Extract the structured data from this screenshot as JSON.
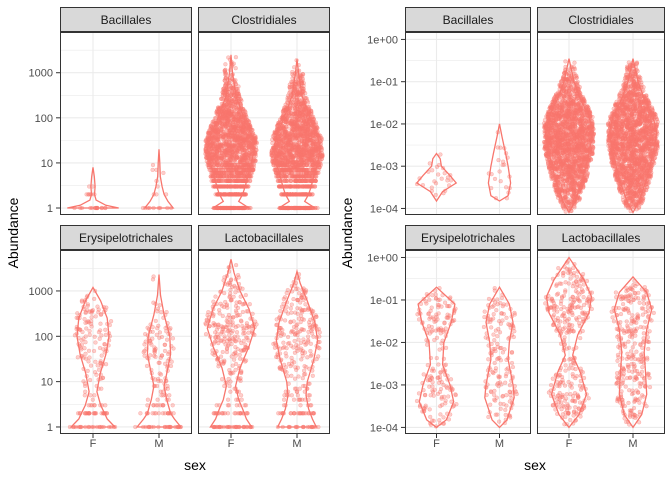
{
  "figure": {
    "colors": {
      "accent": "#f8766d",
      "strip_fill": "#d9d9d9",
      "strip_border": "#333333",
      "panel_border": "#333333",
      "grid": "#ebebeb",
      "text": "#4d4d4d"
    }
  },
  "chart_data": [
    {
      "type": "violin",
      "subtype": "violin with jittered points, faceted 2x2",
      "xlabel": "sex",
      "ylabel": "Abundance",
      "yscale": "log10",
      "ylim": [
        0.7,
        8000
      ],
      "ytick_values": [
        1,
        10,
        100,
        1000
      ],
      "ytick_labels": [
        "1",
        "10",
        "100",
        "1000"
      ],
      "categories": [
        "F",
        "M"
      ],
      "grid": true,
      "facets": [
        {
          "label": "Bacillales",
          "point_count": {
            "F": 24,
            "M": 18
          },
          "point_range": {
            "F": [
              1,
              8
            ],
            "M": [
              1,
              20
            ]
          },
          "violin": {
            "F": {
              "range": [
                1,
                8
              ],
              "profile": [
                [
                  1,
                  1.0
                ],
                [
                  1.15,
                  0.5
                ],
                [
                  1.5,
                  0.12
                ],
                [
                  2,
                  0.06
                ],
                [
                  3,
                  0.08
                ],
                [
                  5,
                  0.05
                ],
                [
                  8,
                  0.0
                ]
              ]
            },
            "M": {
              "range": [
                1,
                20
              ],
              "profile": [
                [
                  1,
                  0.55
                ],
                [
                  1.4,
                  0.35
                ],
                [
                  2,
                  0.2
                ],
                [
                  3,
                  0.12
                ],
                [
                  5,
                  0.05
                ],
                [
                  10,
                  0.03
                ],
                [
                  20,
                  0.0
                ]
              ]
            }
          }
        },
        {
          "label": "Clostridiales",
          "point_count": {
            "F": 2000,
            "M": 2000
          },
          "point_range": {
            "F": [
              1,
              2500
            ],
            "M": [
              1,
              2000
            ]
          },
          "violin": {
            "F": {
              "range": [
                1,
                2500
              ],
              "profile": [
                [
                  1,
                  0.7
                ],
                [
                  1.4,
                  0.3
                ],
                [
                  2,
                  0.45
                ],
                [
                  3,
                  0.55
                ],
                [
                  5,
                  0.65
                ],
                [
                  10,
                  0.8
                ],
                [
                  20,
                  0.9
                ],
                [
                  40,
                  0.8
                ],
                [
                  100,
                  0.5
                ],
                [
                  300,
                  0.2
                ],
                [
                  1000,
                  0.06
                ],
                [
                  2500,
                  0.0
                ]
              ]
            },
            "M": {
              "range": [
                1,
                2000
              ],
              "profile": [
                [
                  1,
                  0.7
                ],
                [
                  1.4,
                  0.3
                ],
                [
                  2,
                  0.45
                ],
                [
                  3,
                  0.55
                ],
                [
                  5,
                  0.65
                ],
                [
                  10,
                  0.8
                ],
                [
                  20,
                  0.9
                ],
                [
                  40,
                  0.8
                ],
                [
                  100,
                  0.5
                ],
                [
                  300,
                  0.2
                ],
                [
                  1000,
                  0.06
                ],
                [
                  2000,
                  0.0
                ]
              ]
            }
          }
        },
        {
          "label": "Erysipelotrichales",
          "point_count": {
            "F": 190,
            "M": 160
          },
          "point_range": {
            "F": [
              1,
              1200
            ],
            "M": [
              1,
              2300
            ]
          },
          "violin": {
            "F": {
              "range": [
                1,
                1200
              ],
              "profile": [
                [
                  1,
                  0.85
                ],
                [
                  1.5,
                  0.55
                ],
                [
                  2,
                  0.45
                ],
                [
                  3,
                  0.3
                ],
                [
                  6,
                  0.15
                ],
                [
                  15,
                  0.28
                ],
                [
                  40,
                  0.5
                ],
                [
                  100,
                  0.62
                ],
                [
                  250,
                  0.55
                ],
                [
                  600,
                  0.3
                ],
                [
                  1200,
                  0.0
                ]
              ]
            },
            "M": {
              "range": [
                1,
                2300
              ],
              "profile": [
                [
                  1,
                  0.85
                ],
                [
                  1.5,
                  0.6
                ],
                [
                  2,
                  0.45
                ],
                [
                  4,
                  0.3
                ],
                [
                  8,
                  0.2
                ],
                [
                  15,
                  0.3
                ],
                [
                  40,
                  0.45
                ],
                [
                  100,
                  0.42
                ],
                [
                  300,
                  0.2
                ],
                [
                  800,
                  0.06
                ],
                [
                  2300,
                  0.0
                ]
              ]
            }
          }
        },
        {
          "label": "Lactobacillales",
          "point_count": {
            "F": 330,
            "M": 300
          },
          "point_range": {
            "F": [
              1,
              5000
            ],
            "M": [
              1,
              2700
            ]
          },
          "violin": {
            "F": {
              "range": [
                1,
                5000
              ],
              "profile": [
                [
                  1,
                  0.8
                ],
                [
                  1.5,
                  0.6
                ],
                [
                  2.5,
                  0.45
                ],
                [
                  4,
                  0.3
                ],
                [
                  8,
                  0.18
                ],
                [
                  20,
                  0.35
                ],
                [
                  60,
                  0.7
                ],
                [
                  150,
                  0.92
                ],
                [
                  400,
                  0.7
                ],
                [
                  1000,
                  0.35
                ],
                [
                  2500,
                  0.12
                ],
                [
                  5000,
                  0.0
                ]
              ]
            },
            "M": {
              "range": [
                1,
                2700
              ],
              "profile": [
                [
                  1,
                  0.75
                ],
                [
                  1.5,
                  0.6
                ],
                [
                  2.5,
                  0.45
                ],
                [
                  5,
                  0.35
                ],
                [
                  10,
                  0.4
                ],
                [
                  30,
                  0.65
                ],
                [
                  80,
                  0.8
                ],
                [
                  200,
                  0.7
                ],
                [
                  600,
                  0.4
                ],
                [
                  1500,
                  0.12
                ],
                [
                  2700,
                  0.0
                ]
              ]
            }
          }
        }
      ]
    },
    {
      "type": "violin",
      "subtype": "violin with jittered points, faceted 2x2",
      "xlabel": "sex",
      "ylabel": "Abundance",
      "yscale": "log10",
      "ylim": [
        7e-05,
        1.5
      ],
      "ytick_values": [
        0.0001,
        0.001,
        0.01,
        0.1,
        1
      ],
      "ytick_labels": [
        "1e-04",
        "1e-03",
        "1e-02",
        "1e-01",
        "1e+00"
      ],
      "categories": [
        "F",
        "M"
      ],
      "grid": true,
      "facets": [
        {
          "label": "Bacillales",
          "point_count": {
            "F": 25,
            "M": 22
          },
          "point_range": {
            "F": [
              0.00015,
              0.002
            ],
            "M": [
              0.00015,
              0.01
            ]
          },
          "violin": {
            "F": {
              "range": [
                0.00015,
                0.002
              ],
              "profile": [
                [
                  0.00015,
                  0.0
                ],
                [
                  0.00025,
                  0.25
                ],
                [
                  0.0004,
                  0.8
                ],
                [
                  0.0006,
                  0.55
                ],
                [
                  0.001,
                  0.2
                ],
                [
                  0.0015,
                  0.15
                ],
                [
                  0.002,
                  0.0
                ]
              ]
            },
            "M": {
              "range": [
                0.00015,
                0.01
              ],
              "profile": [
                [
                  0.00015,
                  0.0
                ],
                [
                  0.0002,
                  0.35
                ],
                [
                  0.0004,
                  0.45
                ],
                [
                  0.001,
                  0.35
                ],
                [
                  0.002,
                  0.25
                ],
                [
                  0.005,
                  0.1
                ],
                [
                  0.01,
                  0.0
                ]
              ]
            }
          }
        },
        {
          "label": "Clostridiales",
          "point_count": {
            "F": 2000,
            "M": 2000
          },
          "point_range": {
            "F": [
              8e-05,
              0.35
            ],
            "M": [
              8e-05,
              0.35
            ]
          },
          "violin": {
            "F": {
              "range": [
                8e-05,
                0.35
              ],
              "profile": [
                [
                  8e-05,
                  0.0
                ],
                [
                  0.00015,
                  0.25
                ],
                [
                  0.0005,
                  0.55
                ],
                [
                  0.002,
                  0.8
                ],
                [
                  0.006,
                  0.95
                ],
                [
                  0.015,
                  0.8
                ],
                [
                  0.04,
                  0.45
                ],
                [
                  0.1,
                  0.2
                ],
                [
                  0.35,
                  0.0
                ]
              ]
            },
            "M": {
              "range": [
                8e-05,
                0.35
              ],
              "profile": [
                [
                  8e-05,
                  0.0
                ],
                [
                  0.00015,
                  0.25
                ],
                [
                  0.0005,
                  0.55
                ],
                [
                  0.002,
                  0.8
                ],
                [
                  0.006,
                  0.95
                ],
                [
                  0.015,
                  0.8
                ],
                [
                  0.04,
                  0.45
                ],
                [
                  0.1,
                  0.2
                ],
                [
                  0.35,
                  0.0
                ]
              ]
            }
          }
        },
        {
          "label": "Erysipelotrichales",
          "point_count": {
            "F": 190,
            "M": 160
          },
          "point_range": {
            "F": [
              0.0001,
              0.2
            ],
            "M": [
              0.0001,
              0.2
            ]
          },
          "violin": {
            "F": {
              "range": [
                0.0001,
                0.2
              ],
              "profile": [
                [
                  0.0001,
                  0.0
                ],
                [
                  0.00015,
                  0.4
                ],
                [
                  0.0004,
                  0.7
                ],
                [
                  0.001,
                  0.55
                ],
                [
                  0.003,
                  0.25
                ],
                [
                  0.01,
                  0.3
                ],
                [
                  0.03,
                  0.6
                ],
                [
                  0.08,
                  0.75
                ],
                [
                  0.2,
                  0.0
                ]
              ]
            },
            "M": {
              "range": [
                0.0001,
                0.2
              ],
              "profile": [
                [
                  0.0001,
                  0.0
                ],
                [
                  0.00015,
                  0.3
                ],
                [
                  0.0005,
                  0.6
                ],
                [
                  0.001,
                  0.55
                ],
                [
                  0.004,
                  0.35
                ],
                [
                  0.01,
                  0.4
                ],
                [
                  0.03,
                  0.55
                ],
                [
                  0.08,
                  0.4
                ],
                [
                  0.2,
                  0.0
                ]
              ]
            }
          }
        },
        {
          "label": "Lactobacillales",
          "point_count": {
            "F": 330,
            "M": 300
          },
          "point_range": {
            "F": [
              0.0001,
              1.0
            ],
            "M": [
              0.0001,
              0.35
            ]
          },
          "violin": {
            "F": {
              "range": [
                0.0001,
                1.0
              ],
              "profile": [
                [
                  0.0001,
                  0.0
                ],
                [
                  0.0002,
                  0.4
                ],
                [
                  0.0006,
                  0.7
                ],
                [
                  0.002,
                  0.45
                ],
                [
                  0.005,
                  0.15
                ],
                [
                  0.015,
                  0.35
                ],
                [
                  0.05,
                  0.8
                ],
                [
                  0.12,
                  0.9
                ],
                [
                  0.3,
                  0.6
                ],
                [
                  1.0,
                  0.0
                ]
              ]
            },
            "M": {
              "range": [
                0.0001,
                0.35
              ],
              "profile": [
                [
                  0.0001,
                  0.0
                ],
                [
                  0.0002,
                  0.35
                ],
                [
                  0.0006,
                  0.55
                ],
                [
                  0.002,
                  0.5
                ],
                [
                  0.006,
                  0.45
                ],
                [
                  0.02,
                  0.55
                ],
                [
                  0.06,
                  0.75
                ],
                [
                  0.15,
                  0.55
                ],
                [
                  0.35,
                  0.0
                ]
              ]
            }
          }
        }
      ]
    }
  ]
}
